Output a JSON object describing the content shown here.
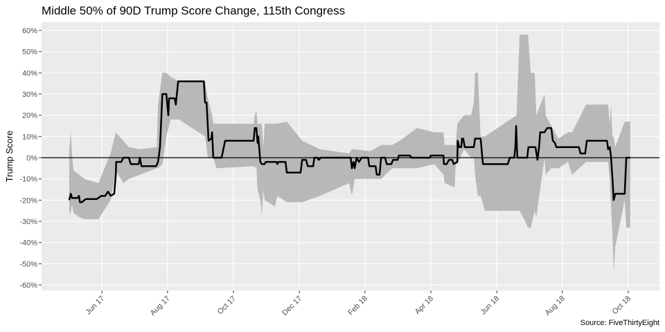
{
  "chart_data": {
    "type": "line",
    "title": "Middle 50% of 90D Trump Score Change, 115th Congress",
    "ylabel": "Trump Score",
    "source": "Source: FiveThirtyEight",
    "grid": true,
    "hline": 0,
    "xlim": [
      2017.264,
      2018.829
    ],
    "ylim": [
      -62.6,
      63.9
    ],
    "xticks": [
      {
        "value": 2017.417,
        "label": "Jun 17"
      },
      {
        "value": 2017.583,
        "label": "Aug 17"
      },
      {
        "value": 2017.75,
        "label": "Oct 17"
      },
      {
        "value": 2017.917,
        "label": "Dec 17"
      },
      {
        "value": 2018.083,
        "label": "Feb 18"
      },
      {
        "value": 2018.25,
        "label": "Apr 18"
      },
      {
        "value": 2018.417,
        "label": "Jun 18"
      },
      {
        "value": 2018.583,
        "label": "Aug 18"
      },
      {
        "value": 2018.75,
        "label": "Oct 18"
      }
    ],
    "yticks": [
      {
        "value": -60,
        "label": "-60%"
      },
      {
        "value": -50,
        "label": "-50%"
      },
      {
        "value": -40,
        "label": "-40%"
      },
      {
        "value": -30,
        "label": "-30%"
      },
      {
        "value": -20,
        "label": "-20%"
      },
      {
        "value": -10,
        "label": "-10%"
      },
      {
        "value": 0,
        "label": "0%"
      },
      {
        "value": 10,
        "label": "10%"
      },
      {
        "value": 20,
        "label": "20%"
      },
      {
        "value": 30,
        "label": "30%"
      },
      {
        "value": 40,
        "label": "40%"
      },
      {
        "value": 50,
        "label": "50%"
      },
      {
        "value": 60,
        "label": "60%"
      }
    ],
    "series": [
      {
        "color": "#b8b8b8",
        "x": [
          2017.334,
          2017.338,
          2017.341,
          2017.345,
          2017.359,
          2017.373,
          2017.408,
          2017.439,
          2017.452,
          2017.471,
          2017.485,
          2017.513,
          2017.556,
          2017.559,
          2017.57,
          2017.58,
          2017.591,
          2017.612,
          2017.678,
          2017.685,
          2017.696,
          2017.699,
          2017.707,
          2017.801,
          2017.804,
          2017.808,
          2017.811,
          2017.818,
          2017.822,
          2017.826,
          2017.829,
          2017.855,
          2017.861,
          2017.885,
          2017.924,
          2017.969,
          2018.043,
          2018.05,
          2018.057,
          2018.096,
          2018.124,
          2018.152,
          2018.171,
          2018.215,
          2018.259,
          2018.282,
          2018.285,
          2018.31,
          2018.313,
          2018.317,
          2018.334,
          2018.352,
          2018.359,
          2018.362,
          2018.369,
          2018.376,
          2018.387,
          2018.467,
          2018.475,
          2018.489,
          2018.496,
          2018.503,
          2018.513,
          2018.517,
          2018.538,
          2018.541,
          2018.555,
          2018.573,
          2018.597,
          2018.608,
          2018.643,
          2018.699,
          2018.703,
          2018.706,
          2018.71,
          2018.713,
          2018.717,
          2018.741,
          2018.745,
          2018.755
        ],
        "upper": [
          3,
          12,
          2,
          -6,
          -8,
          -10,
          -12,
          2,
          12,
          8,
          5,
          4,
          5,
          25,
          40,
          40,
          38,
          36,
          36,
          28,
          20,
          16,
          16,
          16,
          20,
          22,
          16,
          16,
          16,
          5,
          16,
          16,
          16,
          17,
          8,
          4,
          2,
          4,
          4,
          3,
          6,
          6,
          8,
          14,
          12,
          12,
          6,
          6,
          6,
          16,
          20,
          20,
          26,
          40,
          40,
          10,
          10,
          20,
          58,
          58,
          58,
          40,
          40,
          20,
          30,
          20,
          15,
          9,
          12,
          12,
          25,
          25,
          16,
          25,
          10,
          10,
          5,
          17,
          17,
          17
        ],
        "lower": [
          -26,
          -26,
          -22,
          -26,
          -28,
          -29,
          -29,
          -20,
          -6,
          -12,
          -10,
          -8,
          -5,
          -5,
          -3,
          10,
          18,
          18,
          10,
          0,
          0,
          0,
          -5,
          -4,
          -5,
          -4,
          -15,
          -20,
          -27,
          -15,
          -20,
          -23,
          -18,
          -21,
          -21,
          -18,
          -12,
          -18,
          -10,
          -10,
          -10,
          -5,
          -5,
          -5,
          -3,
          -8,
          -12,
          -14,
          -3,
          -3,
          4,
          0,
          0,
          -8,
          -18,
          -18,
          -25,
          -25,
          -25,
          -30,
          -33,
          -33,
          -25,
          -28,
          0,
          -8,
          -5,
          -5,
          -2,
          -8,
          -2,
          -2,
          -10,
          -22,
          -37,
          -54,
          -42,
          -20,
          -33,
          -33
        ]
      },
      {
        "color": "#000000",
        "x": [
          2017.334,
          2017.338,
          2017.341,
          2017.355,
          2017.359,
          2017.361,
          2017.366,
          2017.376,
          2017.404,
          2017.415,
          2017.425,
          2017.432,
          2017.436,
          2017.439,
          2017.448,
          2017.452,
          2017.453,
          2017.466,
          2017.471,
          2017.485,
          2017.49,
          2017.51,
          2017.513,
          2017.517,
          2017.554,
          2017.559,
          2017.564,
          2017.57,
          2017.58,
          2017.585,
          2017.587,
          2017.601,
          2017.604,
          2017.61,
          2017.675,
          2017.678,
          2017.682,
          2017.687,
          2017.694,
          2017.696,
          2017.699,
          2017.72,
          2017.729,
          2017.801,
          2017.804,
          2017.808,
          2017.811,
          2017.813,
          2017.818,
          2017.822,
          2017.829,
          2017.832,
          2017.859,
          2017.861,
          2017.864,
          2017.882,
          2017.885,
          2017.92,
          2017.924,
          2017.934,
          2017.938,
          2017.952,
          2017.955,
          2017.962,
          2017.966,
          2017.971,
          2018.047,
          2018.05,
          2018.054,
          2018.057,
          2018.062,
          2018.068,
          2018.075,
          2018.091,
          2018.094,
          2018.11,
          2018.113,
          2018.12,
          2018.124,
          2018.134,
          2018.138,
          2018.15,
          2018.154,
          2018.166,
          2018.169,
          2018.197,
          2018.201,
          2018.247,
          2018.25,
          2018.282,
          2018.283,
          2018.29,
          2018.296,
          2018.304,
          2018.308,
          2018.317,
          2018.318,
          2018.322,
          2018.327,
          2018.329,
          2018.332,
          2018.336,
          2018.359,
          2018.362,
          2018.376,
          2018.382,
          2018.445,
          2018.45,
          2018.461,
          2018.464,
          2018.466,
          2018.469,
          2018.494,
          2018.497,
          2018.515,
          2018.52,
          2018.524,
          2018.527,
          2018.538,
          2018.541,
          2018.545,
          2018.555,
          2018.559,
          2018.564,
          2018.568,
          2018.625,
          2018.629,
          2018.641,
          2018.645,
          2018.696,
          2018.699,
          2018.703,
          2018.706,
          2018.71,
          2018.713,
          2018.717,
          2018.741,
          2018.745,
          2018.755
        ],
        "values": [
          -20,
          -17,
          -19,
          -19,
          -18,
          -21,
          -21,
          -19.5,
          -19.5,
          -18,
          -18,
          -16,
          -17,
          -18,
          -17,
          -8,
          -2,
          -2,
          0,
          0,
          -3,
          -3,
          0,
          -4,
          -4,
          -2,
          5,
          30,
          30,
          20,
          28,
          28,
          25,
          36,
          36,
          26,
          26,
          8,
          9,
          12,
          0,
          0,
          8,
          8,
          14,
          14,
          7,
          10,
          -2,
          -3,
          -3,
          -2,
          -2,
          -3,
          -2,
          -2,
          -7,
          -7,
          -1,
          -1,
          -4,
          -4,
          0,
          0,
          -1,
          0,
          0,
          -5,
          -2,
          -5,
          0,
          -2,
          0,
          0,
          -4,
          -4,
          -8,
          -8,
          0,
          0,
          -3,
          -3,
          -1,
          -1,
          1,
          1,
          0,
          0,
          1,
          1,
          -3,
          -3,
          -1,
          -1,
          -3,
          -2,
          8,
          5,
          5,
          9,
          9,
          5,
          5,
          9,
          9,
          -3,
          -3,
          0,
          0,
          5,
          15,
          0,
          0,
          5,
          5,
          -1,
          5,
          12,
          12,
          13,
          14,
          14,
          8,
          7,
          5,
          5,
          2,
          2,
          8,
          8,
          4,
          5,
          1,
          -10,
          -20,
          -17,
          -17,
          0,
          0
        ]
      }
    ]
  }
}
